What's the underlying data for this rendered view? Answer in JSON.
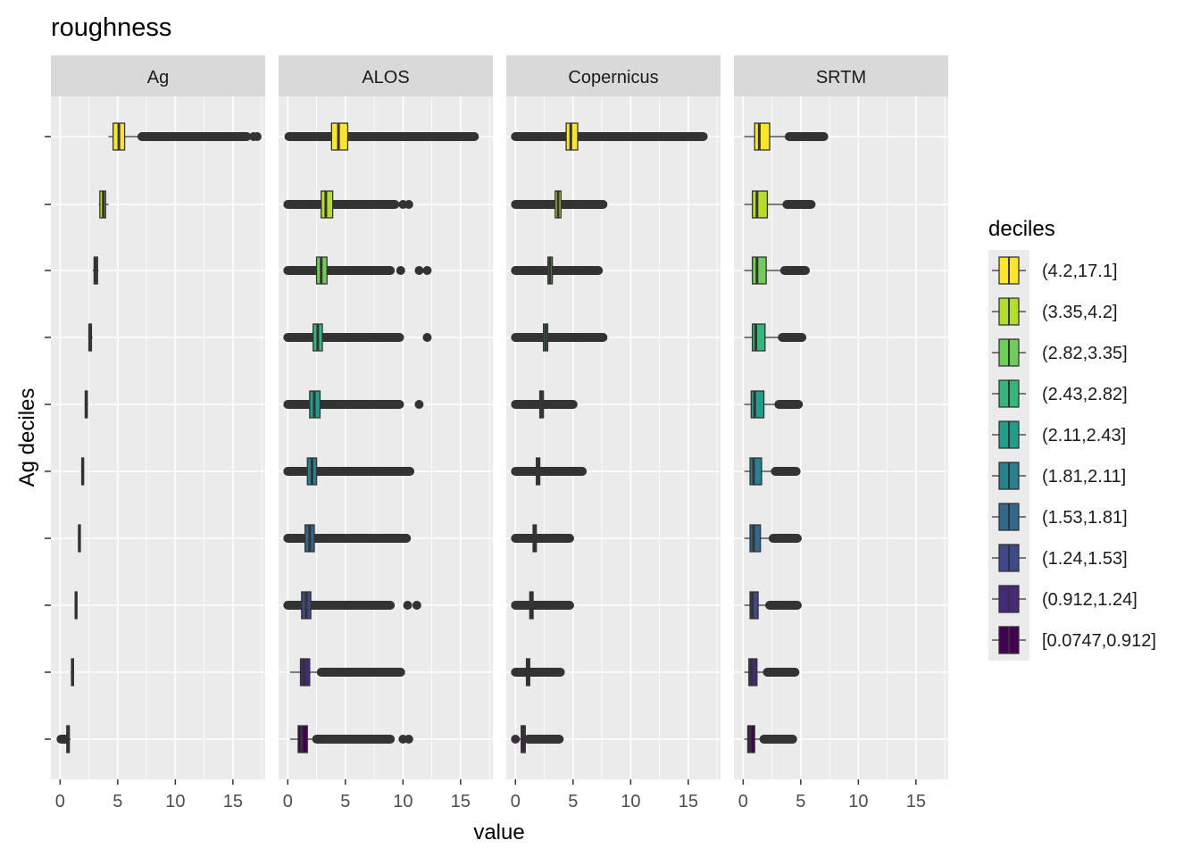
{
  "chart_data": {
    "type": "boxplot",
    "title": "roughness",
    "xlabel": "value",
    "ylabel": "Ag deciles",
    "xlim": [
      -0.8,
      17.8
    ],
    "xticks": [
      0,
      5,
      10,
      15
    ],
    "x_tick_labels": [
      "0",
      "5",
      "10",
      "15"
    ],
    "facets": [
      "Ag",
      "ALOS",
      "Copernicus",
      "SRTM"
    ],
    "legend": {
      "title": "deciles",
      "position": "right",
      "entries": [
        {
          "label": "(4.2,17.1]",
          "color": "#FDE725"
        },
        {
          "label": "(3.35,4.2]",
          "color": "#B5DE2B"
        },
        {
          "label": "(2.82,3.35]",
          "color": "#6ECE58"
        },
        {
          "label": "(2.43,2.82]",
          "color": "#35B779"
        },
        {
          "label": "(2.11,2.43]",
          "color": "#1F9E89"
        },
        {
          "label": "(1.81,2.11]",
          "color": "#26828E"
        },
        {
          "label": "(1.53,1.81]",
          "color": "#31688E"
        },
        {
          "label": "(1.24,1.53]",
          "color": "#3E4989"
        },
        {
          "label": "(0.912,1.24]",
          "color": "#482878"
        },
        {
          "label": "[0.0747,0.912]",
          "color": "#440154"
        }
      ]
    },
    "series": [
      {
        "name": "Ag",
        "boxes": [
          {
            "decile": "(4.2,17.1]",
            "whisker_low": 4.2,
            "q1": 4.6,
            "median": 5.1,
            "q3": 5.6,
            "whisker_high": 7.1,
            "outlier_range": [
              7.1,
              16.2
            ],
            "outlier_points": [
              16.8,
              17.1
            ]
          },
          {
            "decile": "(3.35,4.2]",
            "whisker_low": 3.35,
            "q1": 3.45,
            "median": 3.75,
            "q3": 3.95,
            "whisker_high": 4.2,
            "outlier_range": null,
            "outlier_points": []
          },
          {
            "decile": "(2.82,3.35]",
            "whisker_low": 2.82,
            "q1": 2.95,
            "median": 3.1,
            "q3": 3.25,
            "whisker_high": 3.35,
            "outlier_range": null,
            "outlier_points": []
          },
          {
            "decile": "(2.43,2.82]",
            "whisker_low": 2.43,
            "q1": 2.5,
            "median": 2.62,
            "q3": 2.72,
            "whisker_high": 2.82,
            "outlier_range": null,
            "outlier_points": []
          },
          {
            "decile": "(2.11,2.43]",
            "whisker_low": 2.11,
            "q1": 2.18,
            "median": 2.28,
            "q3": 2.36,
            "whisker_high": 2.43,
            "outlier_range": null,
            "outlier_points": []
          },
          {
            "decile": "(1.81,2.11]",
            "whisker_low": 1.81,
            "q1": 1.88,
            "median": 1.96,
            "q3": 2.04,
            "whisker_high": 2.11,
            "outlier_range": null,
            "outlier_points": []
          },
          {
            "decile": "(1.53,1.81]",
            "whisker_low": 1.53,
            "q1": 1.6,
            "median": 1.67,
            "q3": 1.74,
            "whisker_high": 1.81,
            "outlier_range": null,
            "outlier_points": []
          },
          {
            "decile": "(1.24,1.53]",
            "whisker_low": 1.24,
            "q1": 1.31,
            "median": 1.38,
            "q3": 1.46,
            "whisker_high": 1.53,
            "outlier_range": null,
            "outlier_points": []
          },
          {
            "decile": "(0.912,1.24]",
            "whisker_low": 0.912,
            "q1": 0.99,
            "median": 1.08,
            "q3": 1.16,
            "whisker_high": 1.24,
            "outlier_range": null,
            "outlier_points": []
          },
          {
            "decile": "[0.0747,0.912]",
            "whisker_low": 0.45,
            "q1": 0.58,
            "median": 0.7,
            "q3": 0.8,
            "whisker_high": 0.912,
            "outlier_range": [
              0.0747,
              0.45
            ],
            "outlier_points": []
          }
        ]
      },
      {
        "name": "ALOS",
        "boxes": [
          {
            "decile": "(4.2,17.1]",
            "whisker_low": 2.0,
            "q1": 3.8,
            "median": 4.4,
            "q3": 5.2,
            "whisker_high": 7.3,
            "outlier_range": [
              0.1,
              16.2
            ],
            "outlier_points": []
          },
          {
            "decile": "(3.35,4.2]",
            "whisker_low": 1.5,
            "q1": 2.9,
            "median": 3.3,
            "q3": 3.9,
            "whisker_high": 5.3,
            "outlier_range": [
              0.0,
              9.3
            ],
            "outlier_points": [
              10.0,
              10.5
            ]
          },
          {
            "decile": "(2.82,3.35]",
            "whisker_low": 1.3,
            "q1": 2.5,
            "median": 2.9,
            "q3": 3.4,
            "whisker_high": 4.6,
            "outlier_range": [
              0.0,
              8.9
            ],
            "outlier_points": [
              9.8,
              11.4,
              12.1
            ]
          },
          {
            "decile": "(2.43,2.82]",
            "whisker_low": 1.0,
            "q1": 2.2,
            "median": 2.6,
            "q3": 3.0,
            "whisker_high": 4.2,
            "outlier_range": [
              0.0,
              9.7
            ],
            "outlier_points": [
              12.1
            ]
          },
          {
            "decile": "(2.11,2.43]",
            "whisker_low": 0.9,
            "q1": 1.9,
            "median": 2.3,
            "q3": 2.8,
            "whisker_high": 3.9,
            "outlier_range": [
              0.0,
              9.7
            ],
            "outlier_points": [
              11.4
            ]
          },
          {
            "decile": "(1.81,2.11]",
            "whisker_low": 0.7,
            "q1": 1.7,
            "median": 2.1,
            "q3": 2.5,
            "whisker_high": 3.5,
            "outlier_range": [
              0.0,
              10.6
            ],
            "outlier_points": []
          },
          {
            "decile": "(1.53,1.81]",
            "whisker_low": 0.6,
            "q1": 1.5,
            "median": 1.9,
            "q3": 2.3,
            "whisker_high": 3.2,
            "outlier_range": [
              0.0,
              10.3
            ],
            "outlier_points": []
          },
          {
            "decile": "(1.24,1.53]",
            "whisker_low": 0.5,
            "q1": 1.2,
            "median": 1.6,
            "q3": 2.0,
            "whisker_high": 3.0,
            "outlier_range": [
              0.0,
              8.9
            ],
            "outlier_points": [
              10.4,
              11.2
            ]
          },
          {
            "decile": "(0.912,1.24]",
            "whisker_low": 0.2,
            "q1": 1.1,
            "median": 1.4,
            "q3": 1.9,
            "whisker_high": 2.9,
            "outlier_range": [
              2.9,
              9.8
            ],
            "outlier_points": []
          },
          {
            "decile": "[0.0747,0.912]",
            "whisker_low": 0.2,
            "q1": 0.9,
            "median": 1.2,
            "q3": 1.7,
            "whisker_high": 2.5,
            "outlier_range": [
              2.5,
              8.9
            ],
            "outlier_points": [
              10.0,
              10.5
            ]
          }
        ]
      },
      {
        "name": "Copernicus",
        "boxes": [
          {
            "decile": "(4.2,17.1]",
            "whisker_low": 2.5,
            "q1": 4.4,
            "median": 4.8,
            "q3": 5.4,
            "whisker_high": 7.1,
            "outlier_range": [
              0.0,
              16.3
            ],
            "outlier_points": []
          },
          {
            "decile": "(3.35,4.2]",
            "whisker_low": 2.5,
            "q1": 3.45,
            "median": 3.7,
            "q3": 3.95,
            "whisker_high": 4.5,
            "outlier_range": [
              0.0,
              7.6
            ],
            "outlier_points": []
          },
          {
            "decile": "(2.82,3.35]",
            "whisker_low": 2.0,
            "q1": 2.82,
            "median": 3.0,
            "q3": 3.2,
            "whisker_high": 3.8,
            "outlier_range": [
              0.0,
              7.2
            ],
            "outlier_points": []
          },
          {
            "decile": "(2.43,2.82]",
            "whisker_low": 1.8,
            "q1": 2.43,
            "median": 2.62,
            "q3": 2.8,
            "whisker_high": 3.3,
            "outlier_range": [
              0.0,
              7.6
            ],
            "outlier_points": []
          },
          {
            "decile": "(2.11,2.43]",
            "whisker_low": 1.5,
            "q1": 2.11,
            "median": 2.27,
            "q3": 2.43,
            "whisker_high": 2.9,
            "outlier_range": [
              0.0,
              5.0
            ],
            "outlier_points": []
          },
          {
            "decile": "(1.81,2.11]",
            "whisker_low": 1.3,
            "q1": 1.81,
            "median": 1.96,
            "q3": 2.11,
            "whisker_high": 2.5,
            "outlier_range": [
              0.0,
              5.8
            ],
            "outlier_points": []
          },
          {
            "decile": "(1.53,1.81]",
            "whisker_low": 1.1,
            "q1": 1.53,
            "median": 1.67,
            "q3": 1.81,
            "whisker_high": 2.2,
            "outlier_range": [
              0.0,
              4.7
            ],
            "outlier_points": []
          },
          {
            "decile": "(1.24,1.53]",
            "whisker_low": 0.9,
            "q1": 1.24,
            "median": 1.38,
            "q3": 1.53,
            "whisker_high": 1.9,
            "outlier_range": [
              0.0,
              4.7
            ],
            "outlier_points": []
          },
          {
            "decile": "(0.912,1.24]",
            "whisker_low": 0.6,
            "q1": 0.95,
            "median": 1.08,
            "q3": 1.24,
            "whisker_high": 1.6,
            "outlier_range": [
              0.0,
              3.9
            ],
            "outlier_points": []
          },
          {
            "decile": "[0.0747,0.912]",
            "whisker_low": 0.3,
            "q1": 0.5,
            "median": 0.7,
            "q3": 0.85,
            "whisker_high": 1.1,
            "outlier_range": [
              1.1,
              3.8
            ],
            "outlier_points": [
              0.0
            ]
          }
        ]
      },
      {
        "name": "SRTM",
        "boxes": [
          {
            "decile": "(4.2,17.1]",
            "whisker_low": 0.1,
            "q1": 1.0,
            "median": 1.4,
            "q3": 2.3,
            "whisker_high": 4.0,
            "outlier_range": [
              4.0,
              7.0
            ],
            "outlier_points": []
          },
          {
            "decile": "(3.35,4.2]",
            "whisker_low": 0.1,
            "q1": 0.8,
            "median": 1.2,
            "q3": 2.1,
            "whisker_high": 3.8,
            "outlier_range": [
              3.8,
              5.9
            ],
            "outlier_points": []
          },
          {
            "decile": "(2.82,3.35]",
            "whisker_low": 0.1,
            "q1": 0.8,
            "median": 1.2,
            "q3": 2.0,
            "whisker_high": 3.6,
            "outlier_range": [
              3.6,
              5.4
            ],
            "outlier_points": []
          },
          {
            "decile": "(2.43,2.82]",
            "whisker_low": 0.1,
            "q1": 0.8,
            "median": 1.1,
            "q3": 1.9,
            "whisker_high": 3.4,
            "outlier_range": [
              3.4,
              5.1
            ],
            "outlier_points": []
          },
          {
            "decile": "(2.11,2.43]",
            "whisker_low": 0.1,
            "q1": 0.7,
            "median": 1.0,
            "q3": 1.8,
            "whisker_high": 3.1,
            "outlier_range": [
              3.1,
              4.8
            ],
            "outlier_points": []
          },
          {
            "decile": "(1.81,2.11]",
            "whisker_low": 0.1,
            "q1": 0.6,
            "median": 0.9,
            "q3": 1.6,
            "whisker_high": 2.8,
            "outlier_range": [
              2.8,
              4.6
            ],
            "outlier_points": []
          },
          {
            "decile": "(1.53,1.81]",
            "whisker_low": 0.1,
            "q1": 0.6,
            "median": 0.9,
            "q3": 1.5,
            "whisker_high": 2.6,
            "outlier_range": [
              2.6,
              4.7
            ],
            "outlier_points": []
          },
          {
            "decile": "(1.24,1.53]",
            "whisker_low": 0.1,
            "q1": 0.6,
            "median": 0.8,
            "q3": 1.3,
            "whisker_high": 2.3,
            "outlier_range": [
              2.3,
              4.7
            ],
            "outlier_points": []
          },
          {
            "decile": "(0.912,1.24]",
            "whisker_low": 0.1,
            "q1": 0.5,
            "median": 0.7,
            "q3": 1.2,
            "whisker_high": 2.1,
            "outlier_range": [
              2.1,
              4.5
            ],
            "outlier_points": []
          },
          {
            "decile": "[0.0747,0.912]",
            "whisker_low": 0.1,
            "q1": 0.4,
            "median": 0.6,
            "q3": 1.0,
            "whisker_high": 1.8,
            "outlier_range": [
              1.8,
              4.3
            ],
            "outlier_points": []
          }
        ]
      }
    ]
  }
}
